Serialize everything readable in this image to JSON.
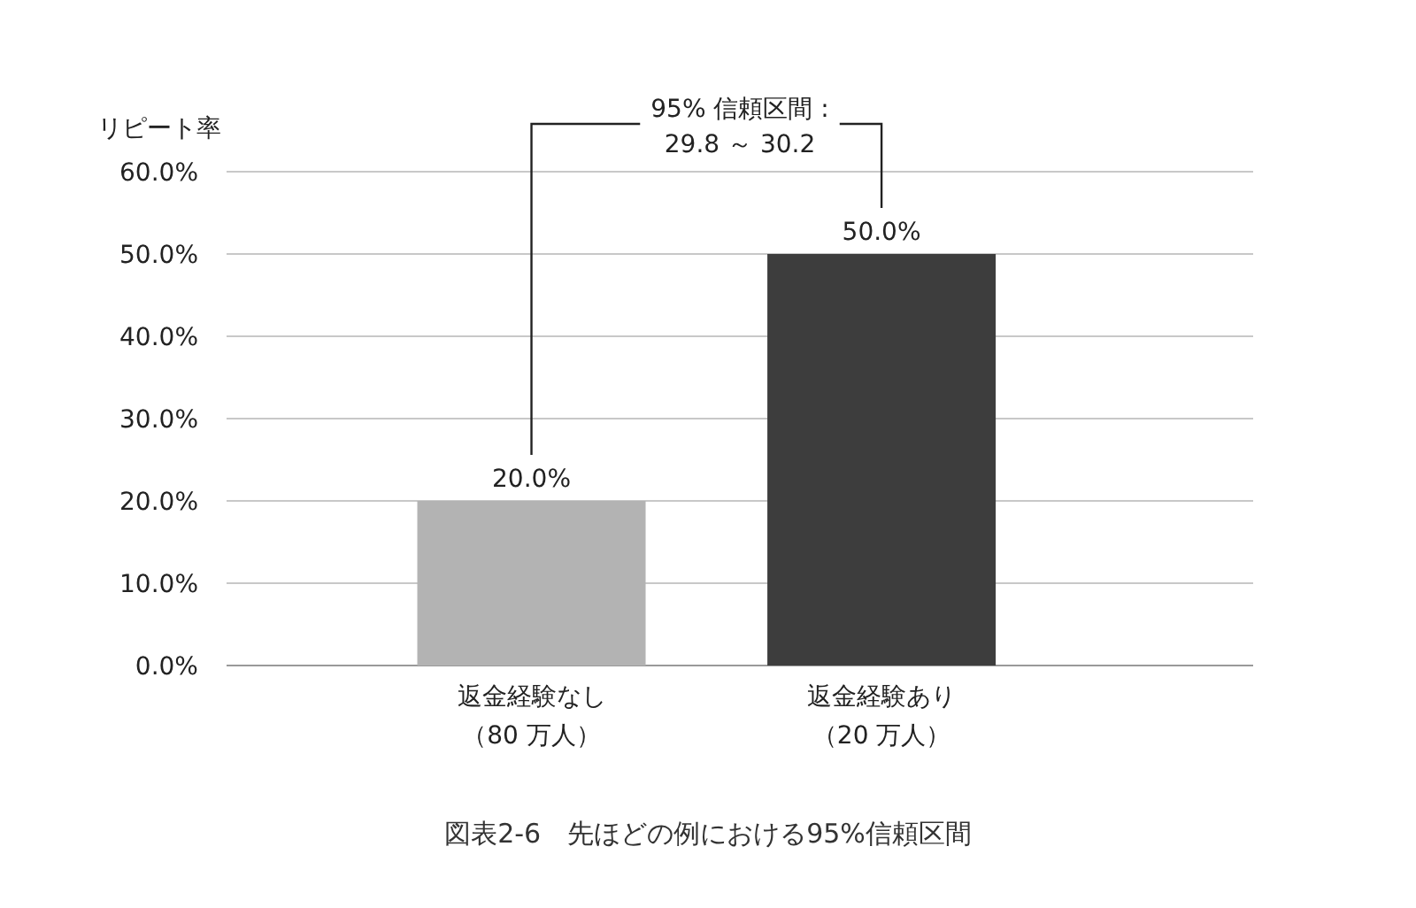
{
  "chart_data": {
    "type": "bar",
    "ylabel": "リピート率",
    "categories": [
      "返金経験なし（80 万人）",
      "返金経験あり（20 万人）"
    ],
    "values": [
      20,
      50
    ],
    "colors": [
      "#b3b3b3",
      "#3d3d3d"
    ],
    "value_labels": [
      "20.0%",
      "50.0%"
    ],
    "ylim": [
      0,
      60
    ],
    "yticks": [
      {
        "value": 0,
        "label": "0.0%"
      },
      {
        "value": 10,
        "label": "10.0%"
      },
      {
        "value": 20,
        "label": "20.0%"
      },
      {
        "value": 30,
        "label": "30.0%"
      },
      {
        "value": 40,
        "label": "40.0%"
      },
      {
        "value": 50,
        "label": "50.0%"
      },
      {
        "value": 60,
        "label": "60.0%"
      }
    ],
    "grid": "y",
    "annotations": [
      "95% 信頼区間 :\n29.8 ～ 30.2",
      "図表2-6　先ほどの例における95%信頼区間"
    ]
  }
}
